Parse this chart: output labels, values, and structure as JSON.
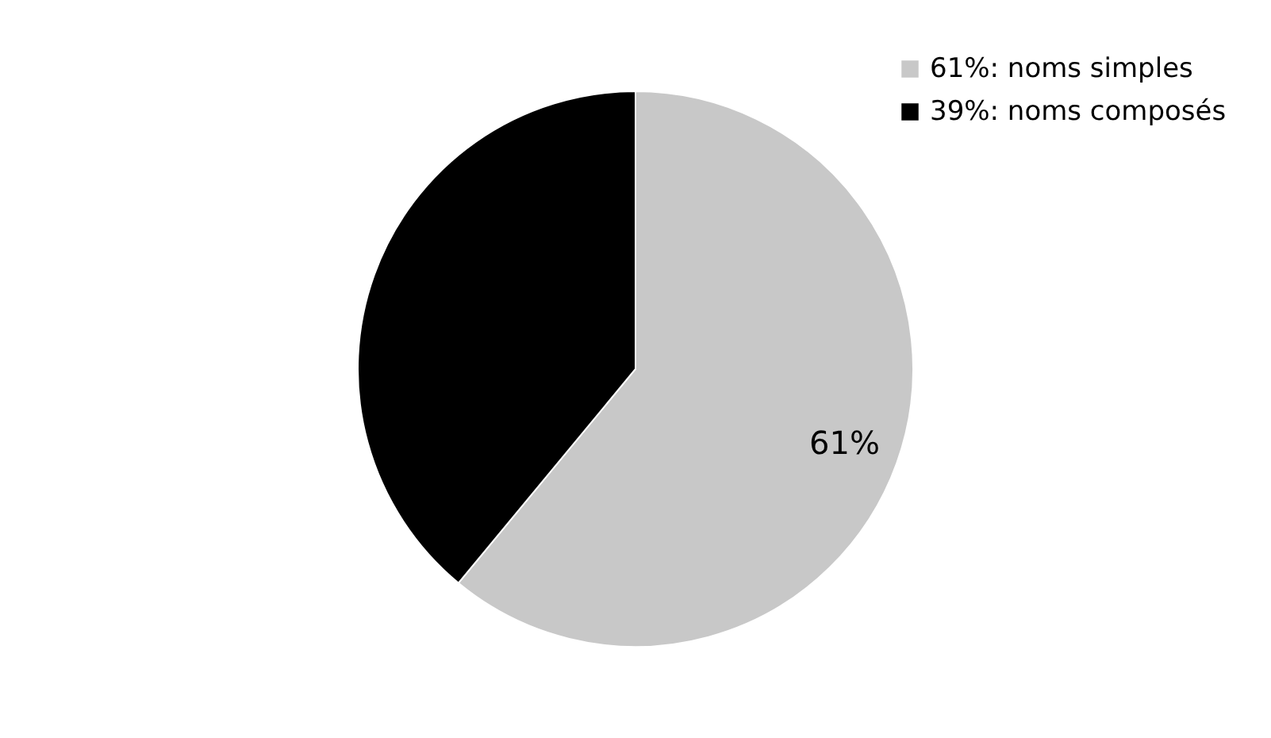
{
  "chart_data": {
    "type": "pie",
    "categories": [
      "61%: noms simples",
      "39%: noms composés"
    ],
    "values": [
      61,
      39
    ],
    "colors": [
      "#c8c8c8",
      "#000000"
    ],
    "value_labels": [
      "61%",
      null
    ],
    "legend": "top right"
  }
}
